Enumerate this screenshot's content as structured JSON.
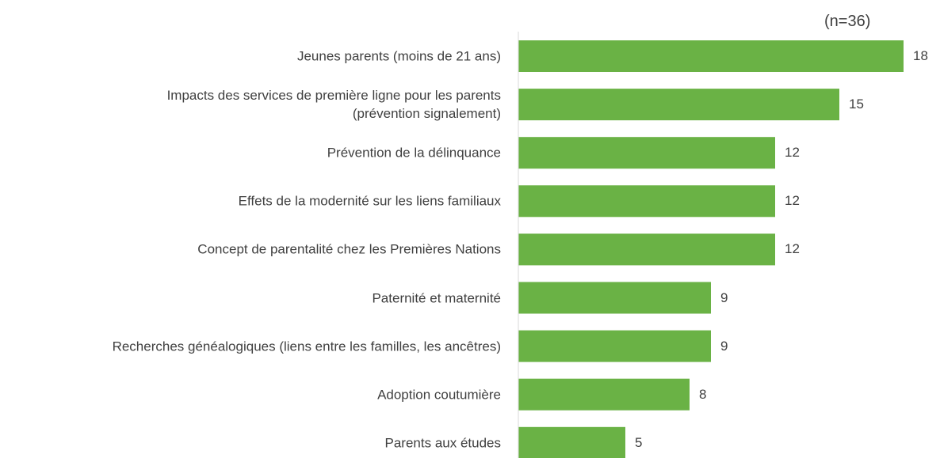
{
  "chart_data": {
    "type": "barh",
    "subtitle": "(n=36)",
    "categories": [
      "Jeunes parents (moins de 21 ans)",
      "Impacts des services de première ligne pour les parents\n(prévention signalement)",
      "Prévention de la délinquance",
      "Effets de la modernité sur les liens familiaux",
      "Concept de parentalité chez les Premières Nations",
      "Paternité et maternité",
      "Recherches généalogiques (liens entre les familles, les ancêtres)",
      "Adoption coutumière",
      "Parents aux études"
    ],
    "values": [
      18,
      15,
      12,
      12,
      12,
      9,
      9,
      8,
      5
    ],
    "color": "#6ab245",
    "xlim": [
      0,
      19
    ]
  }
}
